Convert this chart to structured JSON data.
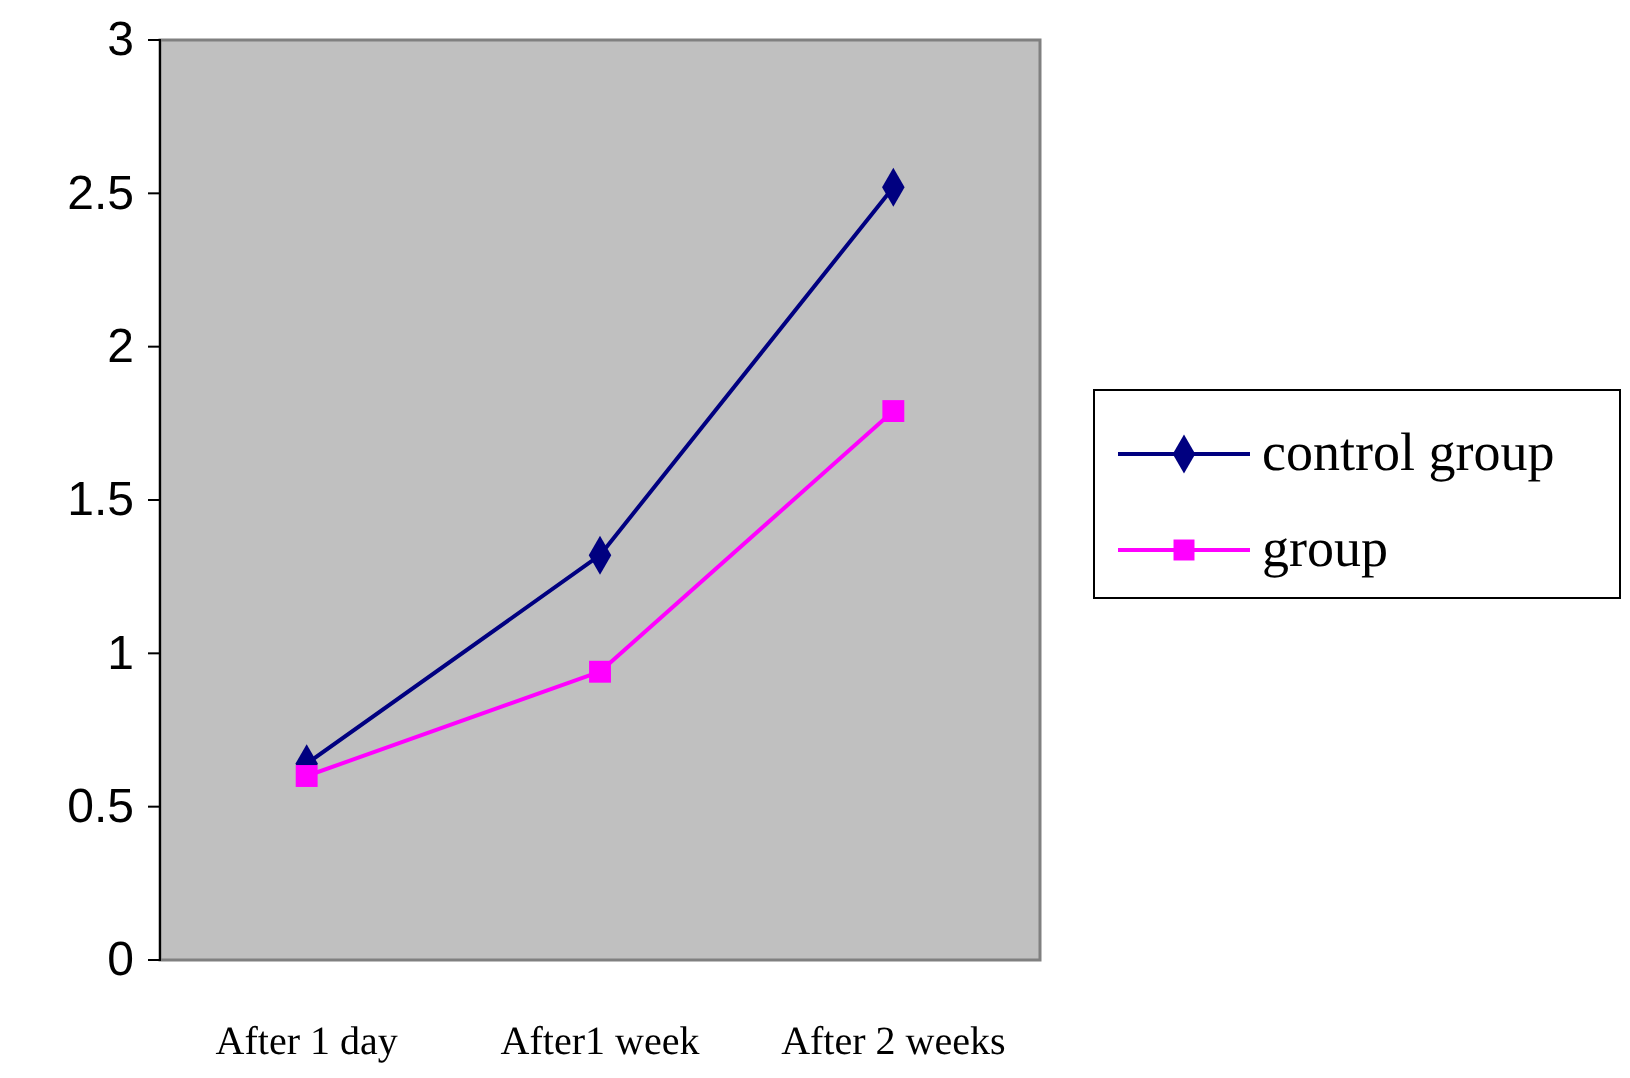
{
  "chart_data": {
    "type": "line",
    "categories": [
      "After 1 day",
      "After1 week",
      "After 2 weeks"
    ],
    "series": [
      {
        "name": "control group",
        "color": "#000080",
        "values": [
          0.64,
          1.32,
          2.52
        ],
        "marker": "diamond"
      },
      {
        "name": "group",
        "color": "#ff00ff",
        "values": [
          0.6,
          0.94,
          1.79
        ],
        "marker": "square"
      }
    ],
    "ylim": [
      0,
      3
    ],
    "yticks": [
      0,
      0.5,
      1,
      1.5,
      2,
      2.5,
      3
    ],
    "grid": false,
    "legend": "right",
    "line_style": "solid"
  }
}
